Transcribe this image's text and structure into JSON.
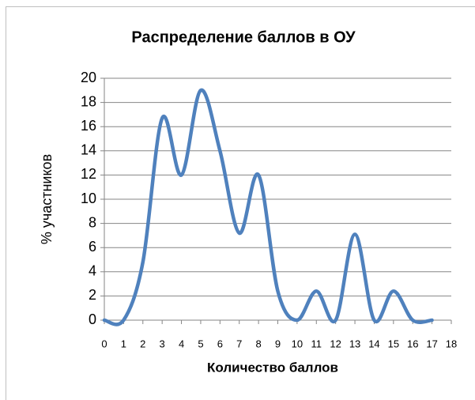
{
  "chart_data": {
    "type": "line",
    "title": "Распределение баллов в ОУ",
    "x_label": "Количество баллов",
    "y_label": "% участников",
    "x": [
      0,
      1,
      2,
      3,
      4,
      5,
      6,
      7,
      8,
      9,
      10,
      11,
      12,
      13,
      14,
      15,
      16,
      17
    ],
    "series": [
      {
        "name": "ОУ",
        "color": "#4f81bd",
        "values": [
          0,
          0,
          4.8,
          16.7,
          12,
          19,
          14,
          7.2,
          12,
          2.4,
          0,
          2.4,
          0,
          7.1,
          0,
          2.4,
          0,
          0
        ]
      }
    ],
    "xlim": [
      0,
      18
    ],
    "xticks": [
      0,
      1,
      2,
      3,
      4,
      5,
      6,
      7,
      8,
      9,
      10,
      11,
      12,
      13,
      14,
      15,
      16,
      17,
      18
    ],
    "ylim": [
      0,
      20
    ],
    "yticks": [
      0,
      2,
      4,
      6,
      8,
      10,
      12,
      14,
      16,
      18,
      20
    ],
    "grid": true,
    "smooth": true,
    "legend": false
  }
}
